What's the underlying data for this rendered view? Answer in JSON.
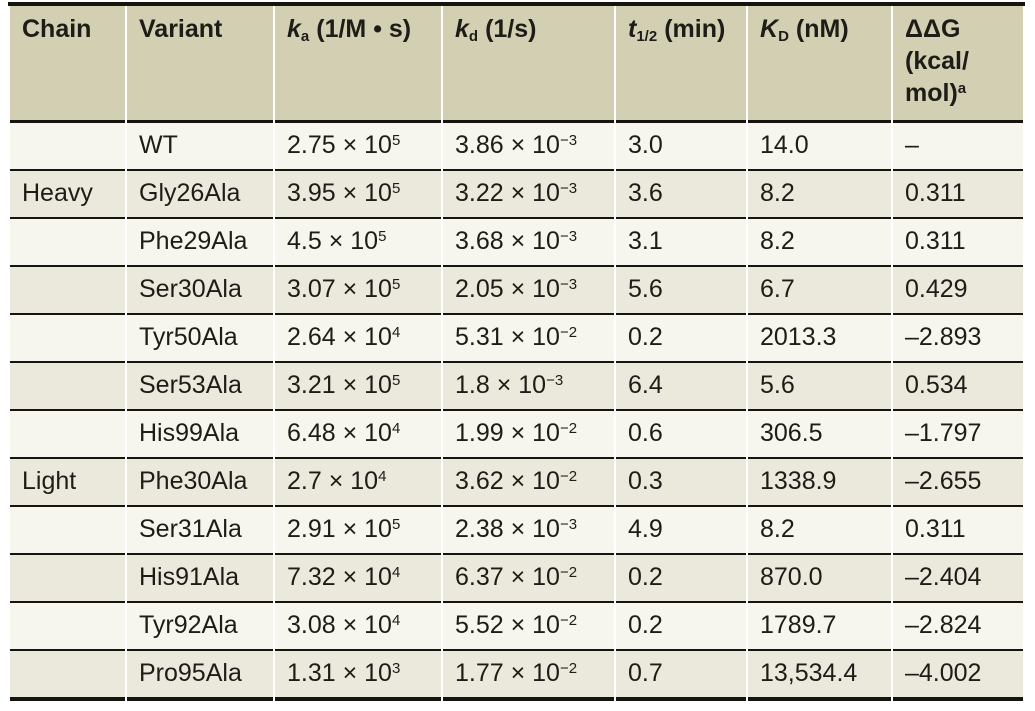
{
  "colors": {
    "header_bg": "#d2cfb2",
    "row_light": "#f6f5ee",
    "row_dark": "#ebe9dc",
    "rule": "#15150f",
    "text": "#1d1c17",
    "page_bg": "#ffffff"
  },
  "table": {
    "header": {
      "chain": "Chain",
      "variant": "Variant",
      "ka": {
        "symbol": "k",
        "sub": "a",
        "unit": "(1/M • s)"
      },
      "kd": {
        "symbol": "k",
        "sub": "d",
        "unit": "(1/s)"
      },
      "t12": {
        "symbol": "t",
        "sub": "1/2",
        "unit": "(min)"
      },
      "KD": {
        "symbol": "K",
        "sub": "D",
        "unit": "(nM)"
      },
      "ddg": {
        "line1": "ΔΔG",
        "line2": "(kcal/",
        "line3": "mol)",
        "sup": "a"
      }
    },
    "rows": [
      {
        "chain": "",
        "variant": "WT",
        "ka_base": "2.75 × 10",
        "ka_exp": "5",
        "kd_base": "3.86 × 10",
        "kd_exp": "−3",
        "t_half": "3.0",
        "kD": "14.0",
        "ddG": "–"
      },
      {
        "chain": "Heavy",
        "variant": "Gly26Ala",
        "ka_base": "3.95 × 10",
        "ka_exp": "5",
        "kd_base": "3.22 × 10",
        "kd_exp": "−3",
        "t_half": "3.6",
        "kD": "8.2",
        "ddG": "0.311"
      },
      {
        "chain": "",
        "variant": "Phe29Ala",
        "ka_base": "4.5 × 10",
        "ka_exp": "5",
        "kd_base": "3.68 × 10",
        "kd_exp": "−3",
        "t_half": "3.1",
        "kD": "8.2",
        "ddG": "0.311"
      },
      {
        "chain": "",
        "variant": "Ser30Ala",
        "ka_base": "3.07 × 10",
        "ka_exp": "5",
        "kd_base": "2.05 × 10",
        "kd_exp": "−3",
        "t_half": "5.6",
        "kD": "6.7",
        "ddG": "0.429"
      },
      {
        "chain": "",
        "variant": "Tyr50Ala",
        "ka_base": "2.64 × 10",
        "ka_exp": "4",
        "kd_base": "5.31 × 10",
        "kd_exp": "−2",
        "t_half": "0.2",
        "kD": "2013.3",
        "ddG": "–2.893"
      },
      {
        "chain": "",
        "variant": "Ser53Ala",
        "ka_base": "3.21 × 10",
        "ka_exp": "5",
        "kd_base": "1.8 × 10",
        "kd_exp": "−3",
        "t_half": "6.4",
        "kD": "5.6",
        "ddG": "0.534"
      },
      {
        "chain": "",
        "variant": "His99Ala",
        "ka_base": "6.48 × 10",
        "ka_exp": "4",
        "kd_base": "1.99 × 10",
        "kd_exp": "−2",
        "t_half": "0.6",
        "kD": "306.5",
        "ddG": "–1.797"
      },
      {
        "chain": "Light",
        "variant": "Phe30Ala",
        "ka_base": "2.7 × 10",
        "ka_exp": "4",
        "kd_base": "3.62 × 10",
        "kd_exp": "−2",
        "t_half": "0.3",
        "kD": "1338.9",
        "ddG": "–2.655"
      },
      {
        "chain": "",
        "variant": "Ser31Ala",
        "ka_base": "2.91 × 10",
        "ka_exp": "5",
        "kd_base": "2.38 × 10",
        "kd_exp": "−3",
        "t_half": "4.9",
        "kD": "8.2",
        "ddG": "0.311"
      },
      {
        "chain": "",
        "variant": "His91Ala",
        "ka_base": "7.32 × 10",
        "ka_exp": "4",
        "kd_base": "6.37 × 10",
        "kd_exp": "−2",
        "t_half": "0.2",
        "kD": "870.0",
        "ddG": "–2.404"
      },
      {
        "chain": "",
        "variant": "Tyr92Ala",
        "ka_base": "3.08 × 10",
        "ka_exp": "4",
        "kd_base": "5.52 × 10",
        "kd_exp": "−2",
        "t_half": "0.2",
        "kD": "1789.7",
        "ddG": "–2.824"
      },
      {
        "chain": "",
        "variant": "Pro95Ala",
        "ka_base": "1.31 × 10",
        "ka_exp": "3",
        "kd_base": "1.77 × 10",
        "kd_exp": "−2",
        "t_half": "0.7",
        "kD": "13,534.4",
        "ddG": "–4.002"
      }
    ]
  }
}
